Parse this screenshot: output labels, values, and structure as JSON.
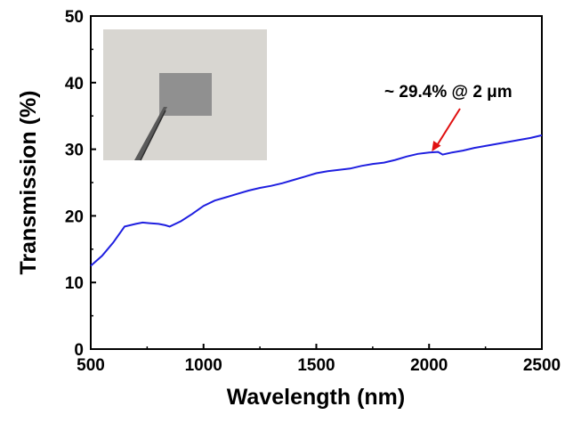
{
  "chart_data": {
    "type": "line",
    "title": "",
    "xlabel": "Wavelength (nm)",
    "ylabel": "Transmission (%)",
    "xlim": [
      500,
      2500
    ],
    "ylim": [
      0,
      50
    ],
    "x_ticks": [
      500,
      1000,
      1500,
      2000,
      2500
    ],
    "y_ticks": [
      0,
      10,
      20,
      30,
      40,
      50
    ],
    "x_tick_labels": [
      "500",
      "1000",
      "1500",
      "2000",
      "2500"
    ],
    "y_tick_labels": [
      "0",
      "10",
      "20",
      "30",
      "40",
      "50"
    ],
    "grid": false,
    "legend": "none",
    "series": [
      {
        "color": "#1f1fe0",
        "x": [
          500,
          550,
          600,
          650,
          700,
          730,
          760,
          800,
          830,
          850,
          900,
          950,
          1000,
          1050,
          1100,
          1150,
          1200,
          1250,
          1300,
          1350,
          1400,
          1450,
          1500,
          1550,
          1600,
          1650,
          1700,
          1750,
          1800,
          1850,
          1900,
          1950,
          2000,
          2040,
          2060,
          2100,
          2150,
          2200,
          2250,
          2300,
          2350,
          2400,
          2450,
          2500
        ],
        "values": [
          12.5,
          14.0,
          16.0,
          18.4,
          18.8,
          19.0,
          18.9,
          18.8,
          18.6,
          18.4,
          19.2,
          20.3,
          21.5,
          22.3,
          22.8,
          23.3,
          23.8,
          24.2,
          24.5,
          24.9,
          25.4,
          25.9,
          26.4,
          26.7,
          26.9,
          27.1,
          27.5,
          27.8,
          28.0,
          28.4,
          28.9,
          29.3,
          29.5,
          29.6,
          29.2,
          29.5,
          29.8,
          30.2,
          30.5,
          30.8,
          31.1,
          31.4,
          31.7,
          32.1
        ]
      }
    ],
    "annotations": [
      {
        "text": "~ 29.4% @ 2 μm",
        "x": 2000,
        "y": 29.4,
        "arrow_color": "#e01010"
      }
    ],
    "inset": {
      "description_icon": "sample-photo-icon",
      "background_color": "#d6d4cf",
      "sample_color": "#8f8f8f"
    }
  }
}
